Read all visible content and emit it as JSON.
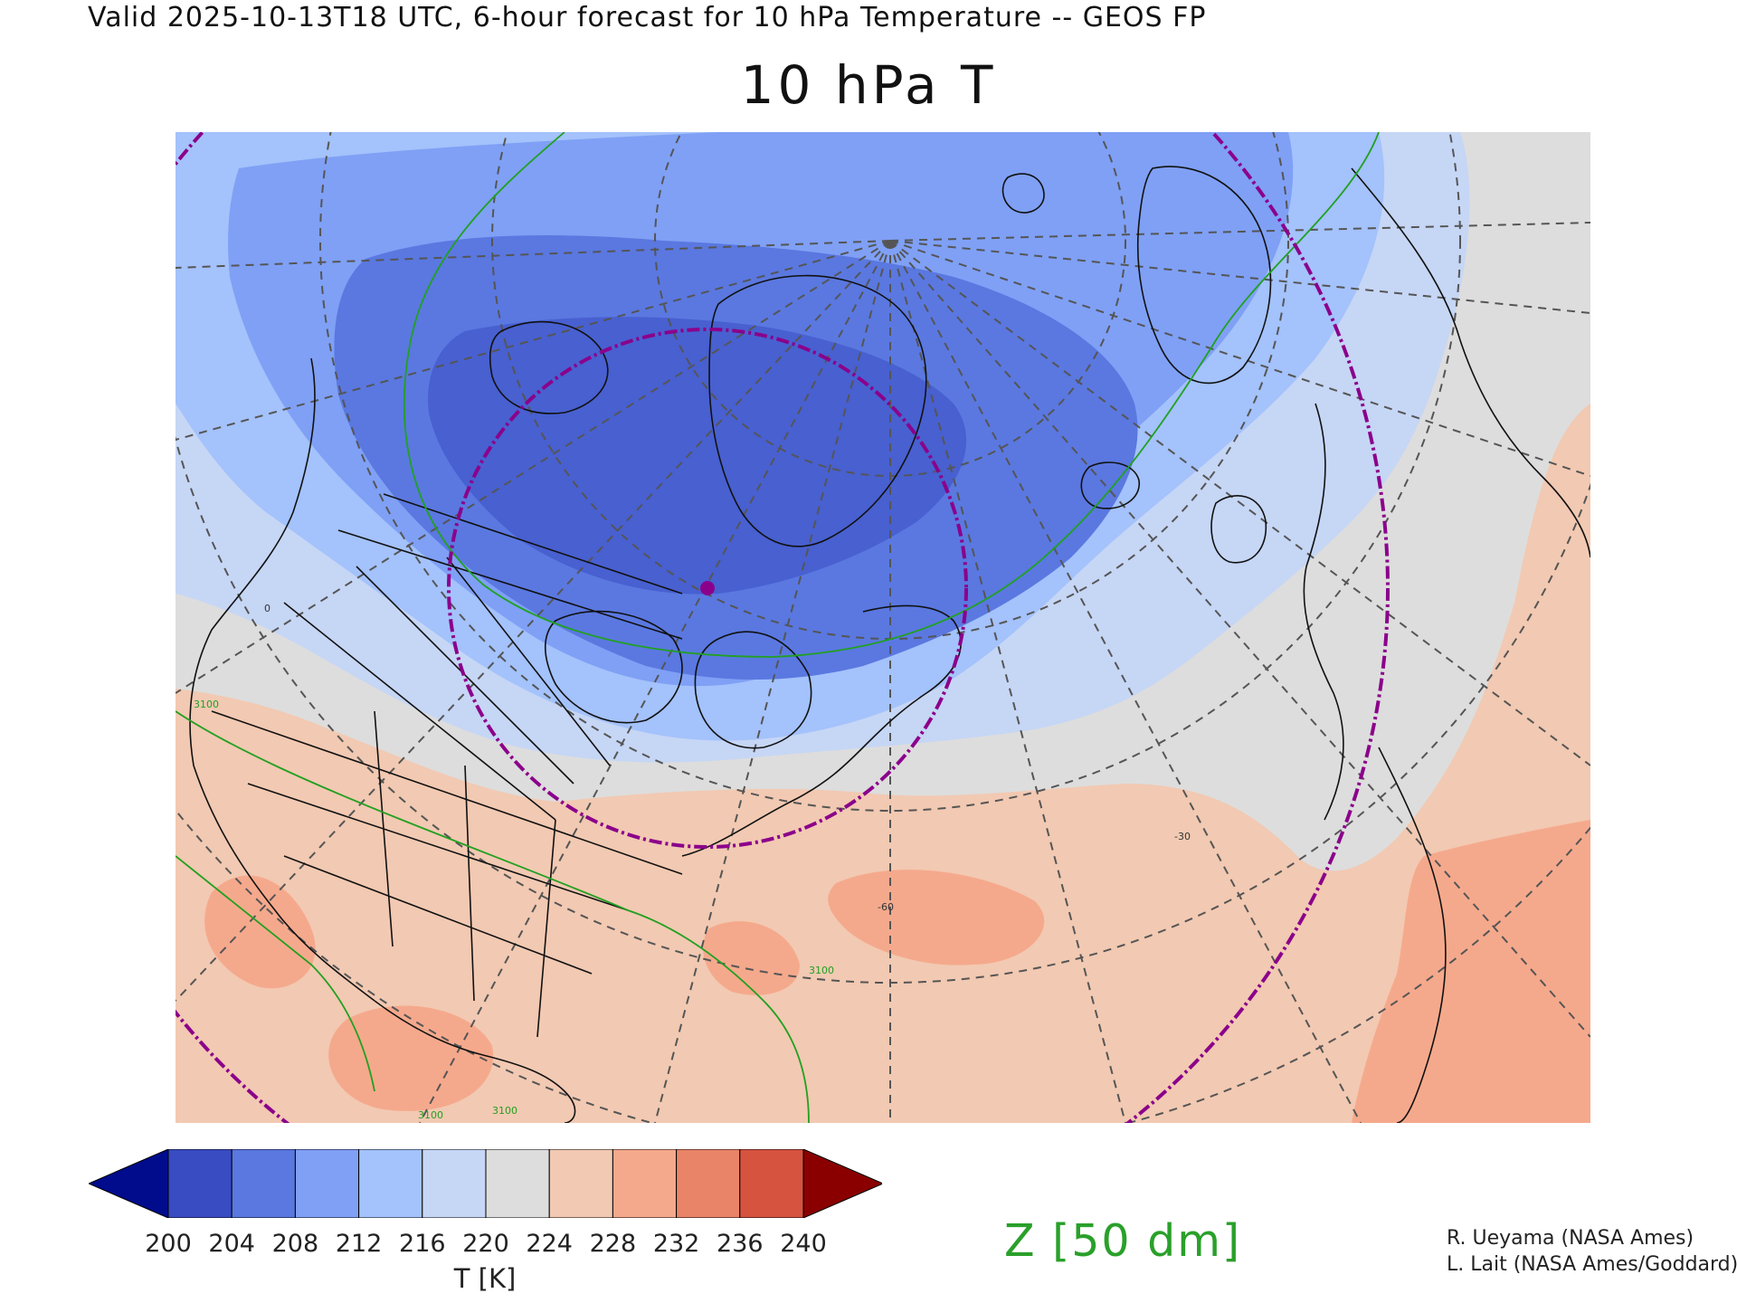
{
  "header": "Valid 2025-10-13T18 UTC, 6-hour forecast for 10 hPa Temperature -- GEOS FP",
  "title": "10 hPa T",
  "colorbar": {
    "ticks": [
      "200",
      "204",
      "208",
      "212",
      "216",
      "220",
      "224",
      "228",
      "232",
      "236",
      "240"
    ],
    "units": "T [K]",
    "colors": [
      "#000c8c",
      "#3a4cc2",
      "#5a78e0",
      "#7fa0f5",
      "#a4c2fb",
      "#c6d6f5",
      "#dddddd",
      "#f2c9b2",
      "#f5a98c",
      "#ea8468",
      "#d6533f",
      "#8a0000"
    ]
  },
  "contour_label": "Z [50 dm]",
  "contour_values": [
    "3100",
    "3100",
    "3100",
    "3100"
  ],
  "graticule_labels": [
    "-60",
    "-30",
    "0"
  ],
  "credits": [
    "R. Ueyama (NASA Ames)",
    "L. Lait (NASA Ames/Goddard)"
  ],
  "map_colors": {
    "contour": "#22a022",
    "range_ring": "#8b008b",
    "grid": "#555555",
    "coast": "#111111"
  }
}
